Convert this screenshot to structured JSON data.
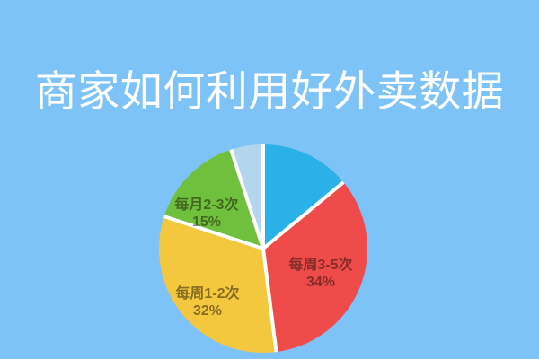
{
  "page": {
    "background_color": "#7ec3f8"
  },
  "header": {
    "title": "商家如何利用好外卖数据",
    "title_color": "#ffffff"
  },
  "chart_data": {
    "type": "pie",
    "title": "商家如何利用好外卖数据",
    "legend_position": "none",
    "start_angle_deg": 0,
    "direction": "clockwise",
    "gap_color": "#ffffff",
    "label_text_color": "rgba(25,15,5,0.5)",
    "segments": [
      {
        "label": "",
        "percent_label": "",
        "value": 14,
        "color": "#29b1e8"
      },
      {
        "label": "每周3-5次",
        "percent_label": "34%",
        "value": 34,
        "color": "#ef4b4b"
      },
      {
        "label": "每周1-2次",
        "percent_label": "32%",
        "value": 32,
        "color": "#f4c83e"
      },
      {
        "label": "每月2-3次",
        "percent_label": "15%",
        "value": 15,
        "color": "#6fc13d"
      },
      {
        "label": "",
        "percent_label": "",
        "value": 5,
        "color": "#b3d6ee"
      }
    ]
  }
}
